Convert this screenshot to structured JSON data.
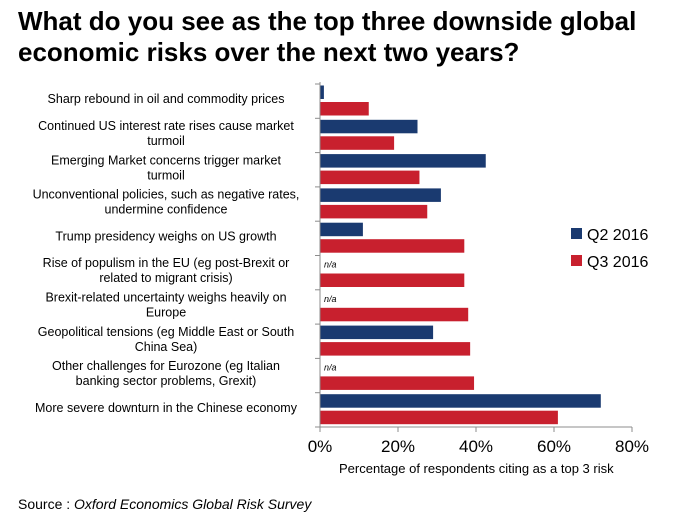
{
  "title": "What do you see as the top three downside global economic risks over the next two years?",
  "source_prefix": "Source : ",
  "source_name": "Oxford Economics Global Risk Survey",
  "colors": {
    "q2": "#1a3a70",
    "q3": "#c8202e",
    "axis": "#8c8c8c"
  },
  "chart_data": {
    "type": "bar",
    "orientation": "horizontal",
    "title": "What do you see as the top three downside global economic risks over the next two years?",
    "xlabel": "Percentage of respondents citing as a top 3 risk",
    "ylabel": "",
    "xlim": [
      0,
      80
    ],
    "xticks": [
      "0%",
      "20%",
      "40%",
      "60%",
      "80%"
    ],
    "xtick_values": [
      0,
      20,
      40,
      60,
      80
    ],
    "grid": false,
    "legend_position": "right",
    "na_text": "n/a",
    "categories": [
      [
        "Sharp rebound in oil and commodity prices"
      ],
      [
        "Continued US interest rate rises cause market",
        "turmoil"
      ],
      [
        "Emerging Market concerns trigger market",
        "turmoil"
      ],
      [
        "Unconventional policies, such as negative rates,",
        "undermine confidence"
      ],
      [
        "Trump presidency weighs on US growth"
      ],
      [
        "Rise of populism in the EU (eg post-Brexit or",
        "related to migrant crisis)"
      ],
      [
        "Brexit-related uncertainty weighs heavily on",
        "Europe"
      ],
      [
        "Geopolitical tensions (eg Middle East or South",
        "China Sea)"
      ],
      [
        "Other challenges for Eurozone (eg Italian",
        "banking sector problems, Grexit)"
      ],
      [
        "More severe downturn in the Chinese economy"
      ]
    ],
    "series": [
      {
        "name": "Q2 2016",
        "color": "#1a3a70",
        "values": [
          1,
          25,
          42.5,
          31,
          11,
          null,
          null,
          29,
          null,
          72
        ]
      },
      {
        "name": "Q3 2016",
        "color": "#c8202e",
        "values": [
          12.5,
          19,
          25.5,
          27.5,
          37,
          37,
          38,
          38.5,
          39.5,
          61
        ]
      }
    ]
  }
}
